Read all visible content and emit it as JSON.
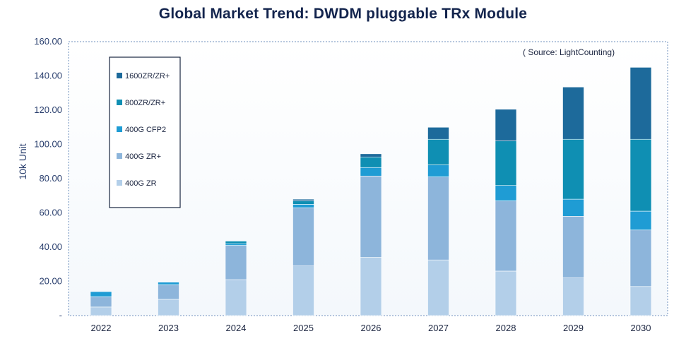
{
  "chart_data": {
    "type": "bar",
    "stacked": true,
    "title": "Global Market Trend: DWDM pluggable TRx Module",
    "annotation": "( Source: LightCounting)",
    "xlabel": "",
    "ylabel": "10k Unit",
    "ylim": [
      0,
      160
    ],
    "yticks": [
      0,
      20,
      40,
      60,
      80,
      100,
      120,
      140,
      160
    ],
    "ytick_labels": [
      "-",
      "20.00",
      "40.00",
      "60.00",
      "80.00",
      "100.00",
      "120.00",
      "140.00",
      "160.00"
    ],
    "grid": false,
    "legend_position": "top-left",
    "categories": [
      "2022",
      "2023",
      "2024",
      "2025",
      "2026",
      "2027",
      "2028",
      "2029",
      "2030"
    ],
    "series": [
      {
        "name": "400G ZR",
        "color": "#b3cfe9",
        "values": [
          5,
          9.5,
          21,
          29,
          34,
          32.5,
          26,
          22,
          17
        ]
      },
      {
        "name": "400G ZR+",
        "color": "#8db5db",
        "values": [
          6,
          8.5,
          20,
          34,
          47.5,
          48.5,
          41,
          36,
          33
        ]
      },
      {
        "name": "400G CFP2",
        "color": "#1f9cd4",
        "values": [
          3,
          1.5,
          1,
          2,
          5,
          7,
          9,
          10,
          11
        ]
      },
      {
        "name": "800ZR/ZR+",
        "color": "#0f8fb3",
        "values": [
          0,
          0,
          1.5,
          2,
          6,
          15,
          26,
          35,
          42
        ]
      },
      {
        "name": "1600ZR/ZR+",
        "color": "#1d6a9b",
        "values": [
          0,
          0,
          0,
          1,
          2,
          7,
          18.5,
          30.5,
          42
        ]
      }
    ]
  }
}
